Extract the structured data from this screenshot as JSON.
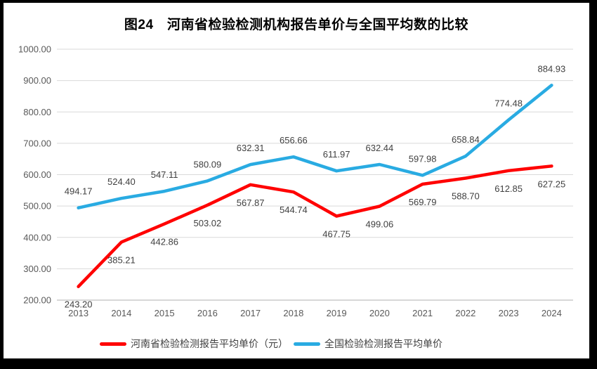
{
  "title": "图24　河南省检验检测机构报告单价与全国平均数的比较",
  "chart_data": {
    "type": "line",
    "title": "图24　河南省检验检测机构报告单价与全国平均数的比较",
    "categories": [
      "2013",
      "2014",
      "2015",
      "2016",
      "2017",
      "2018",
      "2019",
      "2020",
      "2021",
      "2022",
      "2023",
      "2024"
    ],
    "series": [
      {
        "id": "henan",
        "name": "河南省检验检测报告平均单价（元）",
        "color": "#FF0000",
        "label_side": "below",
        "values": [
          243.2,
          385.21,
          442.86,
          503.02,
          567.87,
          544.74,
          467.75,
          499.06,
          569.79,
          588.7,
          612.85,
          627.25
        ]
      },
      {
        "id": "national",
        "name": "全国检验检测报告平均单价",
        "color": "#29ABE2",
        "label_side": "above",
        "values": [
          494.17,
          524.4,
          547.11,
          580.09,
          632.31,
          656.66,
          611.97,
          632.44,
          597.98,
          658.84,
          774.48,
          884.93
        ]
      }
    ],
    "xlabel": "",
    "ylabel": "",
    "ylim": [
      200,
      1000
    ],
    "ytick_step": 100,
    "yticks": [
      "1000.00",
      "900.00",
      "800.00",
      "700.00",
      "600.00",
      "500.00",
      "400.00",
      "300.00",
      "200.00"
    ],
    "value_label_decimals": 2,
    "grid": true,
    "legend_position": "bottom",
    "colors": {
      "grid": "#D9D9D9",
      "axis_line": "#BFBFBF",
      "tick_text": "#595959",
      "data_label_text": "#404040",
      "frame_border": "#000000",
      "background": "#FFFFFF"
    }
  }
}
